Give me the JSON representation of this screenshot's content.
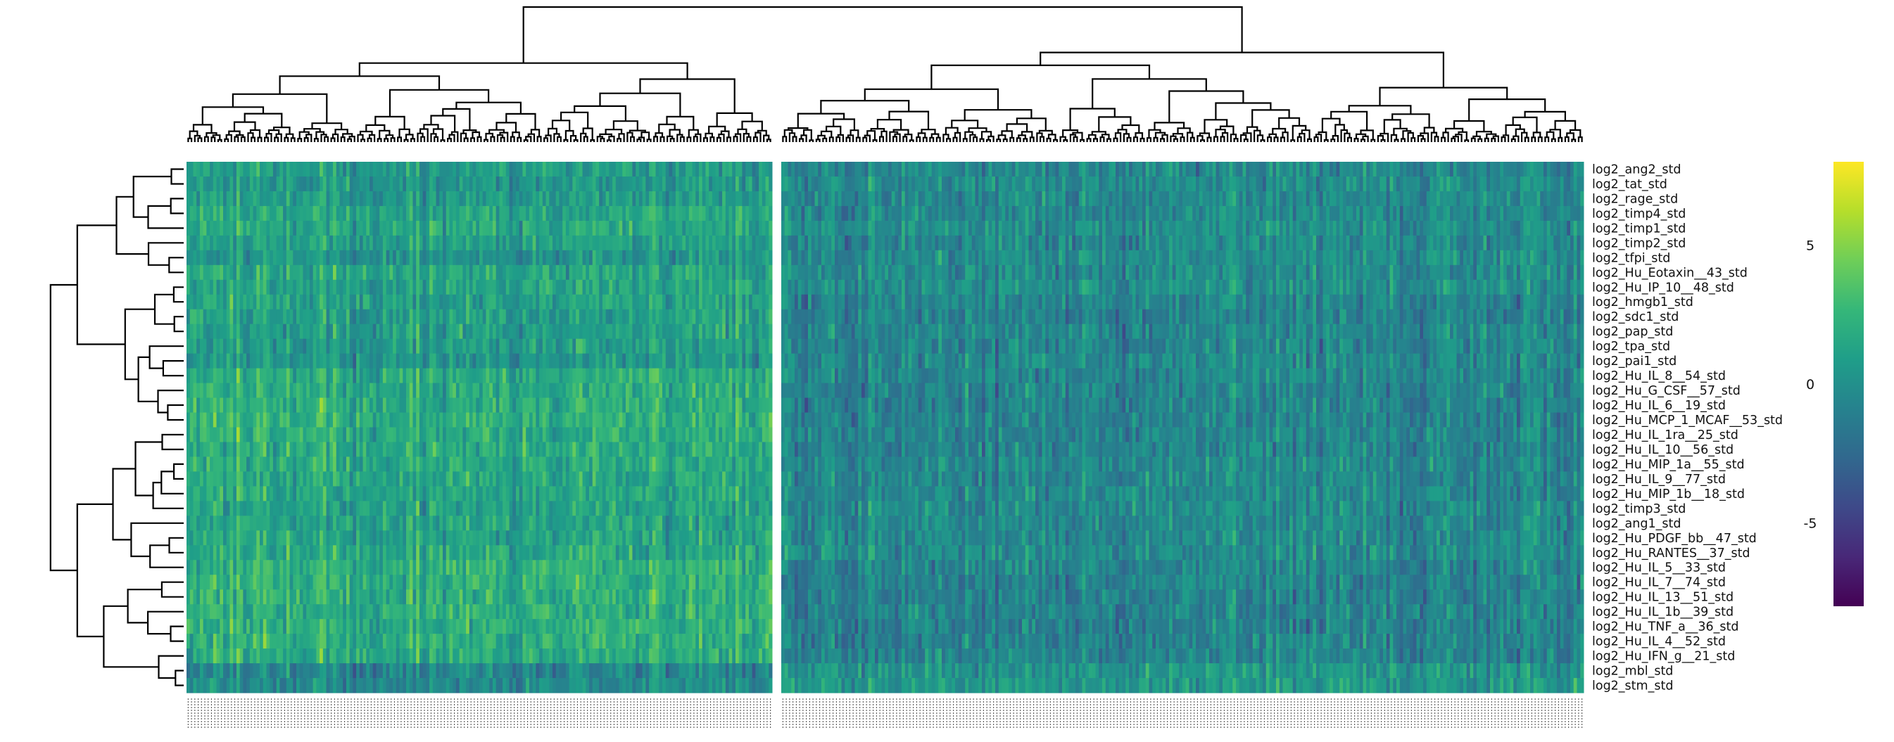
{
  "chart_data": {
    "type": "heatmap",
    "title": "",
    "xlabel": "",
    "ylabel": "",
    "colormap": "viridis",
    "color_range": [
      -8,
      8
    ],
    "colorbar": {
      "ticks": [
        "5",
        "0",
        "-5"
      ],
      "tick_values": [
        5,
        0,
        -5
      ]
    },
    "column_clusters": [
      {
        "name": "",
        "count": 176
      },
      {
        "name": "",
        "count": 240
      }
    ],
    "rows": [
      "log2_ang2_std",
      "log2_tat_std",
      "log2_rage_std",
      "log2_timp4_std",
      "log2_timp1_std",
      "log2_timp2_std",
      "log2_tfpi_std",
      "log2_Hu_Eotaxin__43_std",
      "log2_Hu_IP_10__48_std",
      "log2_hmgb1_std",
      "log2_sdc1_std",
      "log2_pap_std",
      "log2_tpa_std",
      "log2_pai1_std",
      "log2_Hu_IL_8__54_std",
      "log2_Hu_G_CSF__57_std",
      "log2_Hu_IL_6__19_std",
      "log2_Hu_MCP_1_MCAF__53_std",
      "log2_Hu_IL_1ra__25_std",
      "log2_Hu_IL_10__56_std",
      "log2_Hu_MIP_1a__55_std",
      "log2_Hu_IL_9__77_std",
      "log2_Hu_MIP_1b__18_std",
      "log2_timp3_std",
      "log2_ang1_std",
      "log2_Hu_PDGF_bb__47_std",
      "log2_Hu_RANTES__37_std",
      "log2_Hu_IL_5__33_std",
      "log2_Hu_IL_7__74_std",
      "log2_Hu_IL_13__51_std",
      "log2_Hu_IL_1b__39_std",
      "log2_Hu_TNF_a__36_std",
      "log2_Hu_IL_4__52_std",
      "log2_Hu_IFN_g__21_std",
      "log2_mbl_std",
      "log2_stm_std"
    ],
    "row_mean_by_cluster": [
      [
        1.0,
        -0.5
      ],
      [
        0.6,
        -0.2
      ],
      [
        0.8,
        -0.4
      ],
      [
        1.5,
        -0.4
      ],
      [
        1.6,
        -0.2
      ],
      [
        1.2,
        -0.6
      ],
      [
        0.4,
        -0.2
      ],
      [
        1.5,
        -0.3
      ],
      [
        1.3,
        -0.1
      ],
      [
        1.2,
        -0.8
      ],
      [
        1.0,
        -0.9
      ],
      [
        0.9,
        -0.6
      ],
      [
        0.8,
        -0.7
      ],
      [
        0.5,
        -0.5
      ],
      [
        1.8,
        -0.6
      ],
      [
        1.9,
        -0.8
      ],
      [
        2.0,
        -0.9
      ],
      [
        2.1,
        -0.9
      ],
      [
        2.0,
        -0.7
      ],
      [
        1.9,
        -0.8
      ],
      [
        1.8,
        -0.5
      ],
      [
        1.5,
        -0.6
      ],
      [
        1.6,
        -0.5
      ],
      [
        1.2,
        -0.3
      ],
      [
        1.3,
        -0.4
      ],
      [
        1.4,
        -0.4
      ],
      [
        1.6,
        -0.3
      ],
      [
        2.2,
        -0.8
      ],
      [
        2.2,
        -0.9
      ],
      [
        2.1,
        -0.9
      ],
      [
        2.0,
        -0.9
      ],
      [
        2.1,
        -1.0
      ],
      [
        2.0,
        -0.9
      ],
      [
        1.8,
        -0.8
      ],
      [
        -0.6,
        0.3
      ],
      [
        -0.2,
        0.5
      ]
    ]
  }
}
